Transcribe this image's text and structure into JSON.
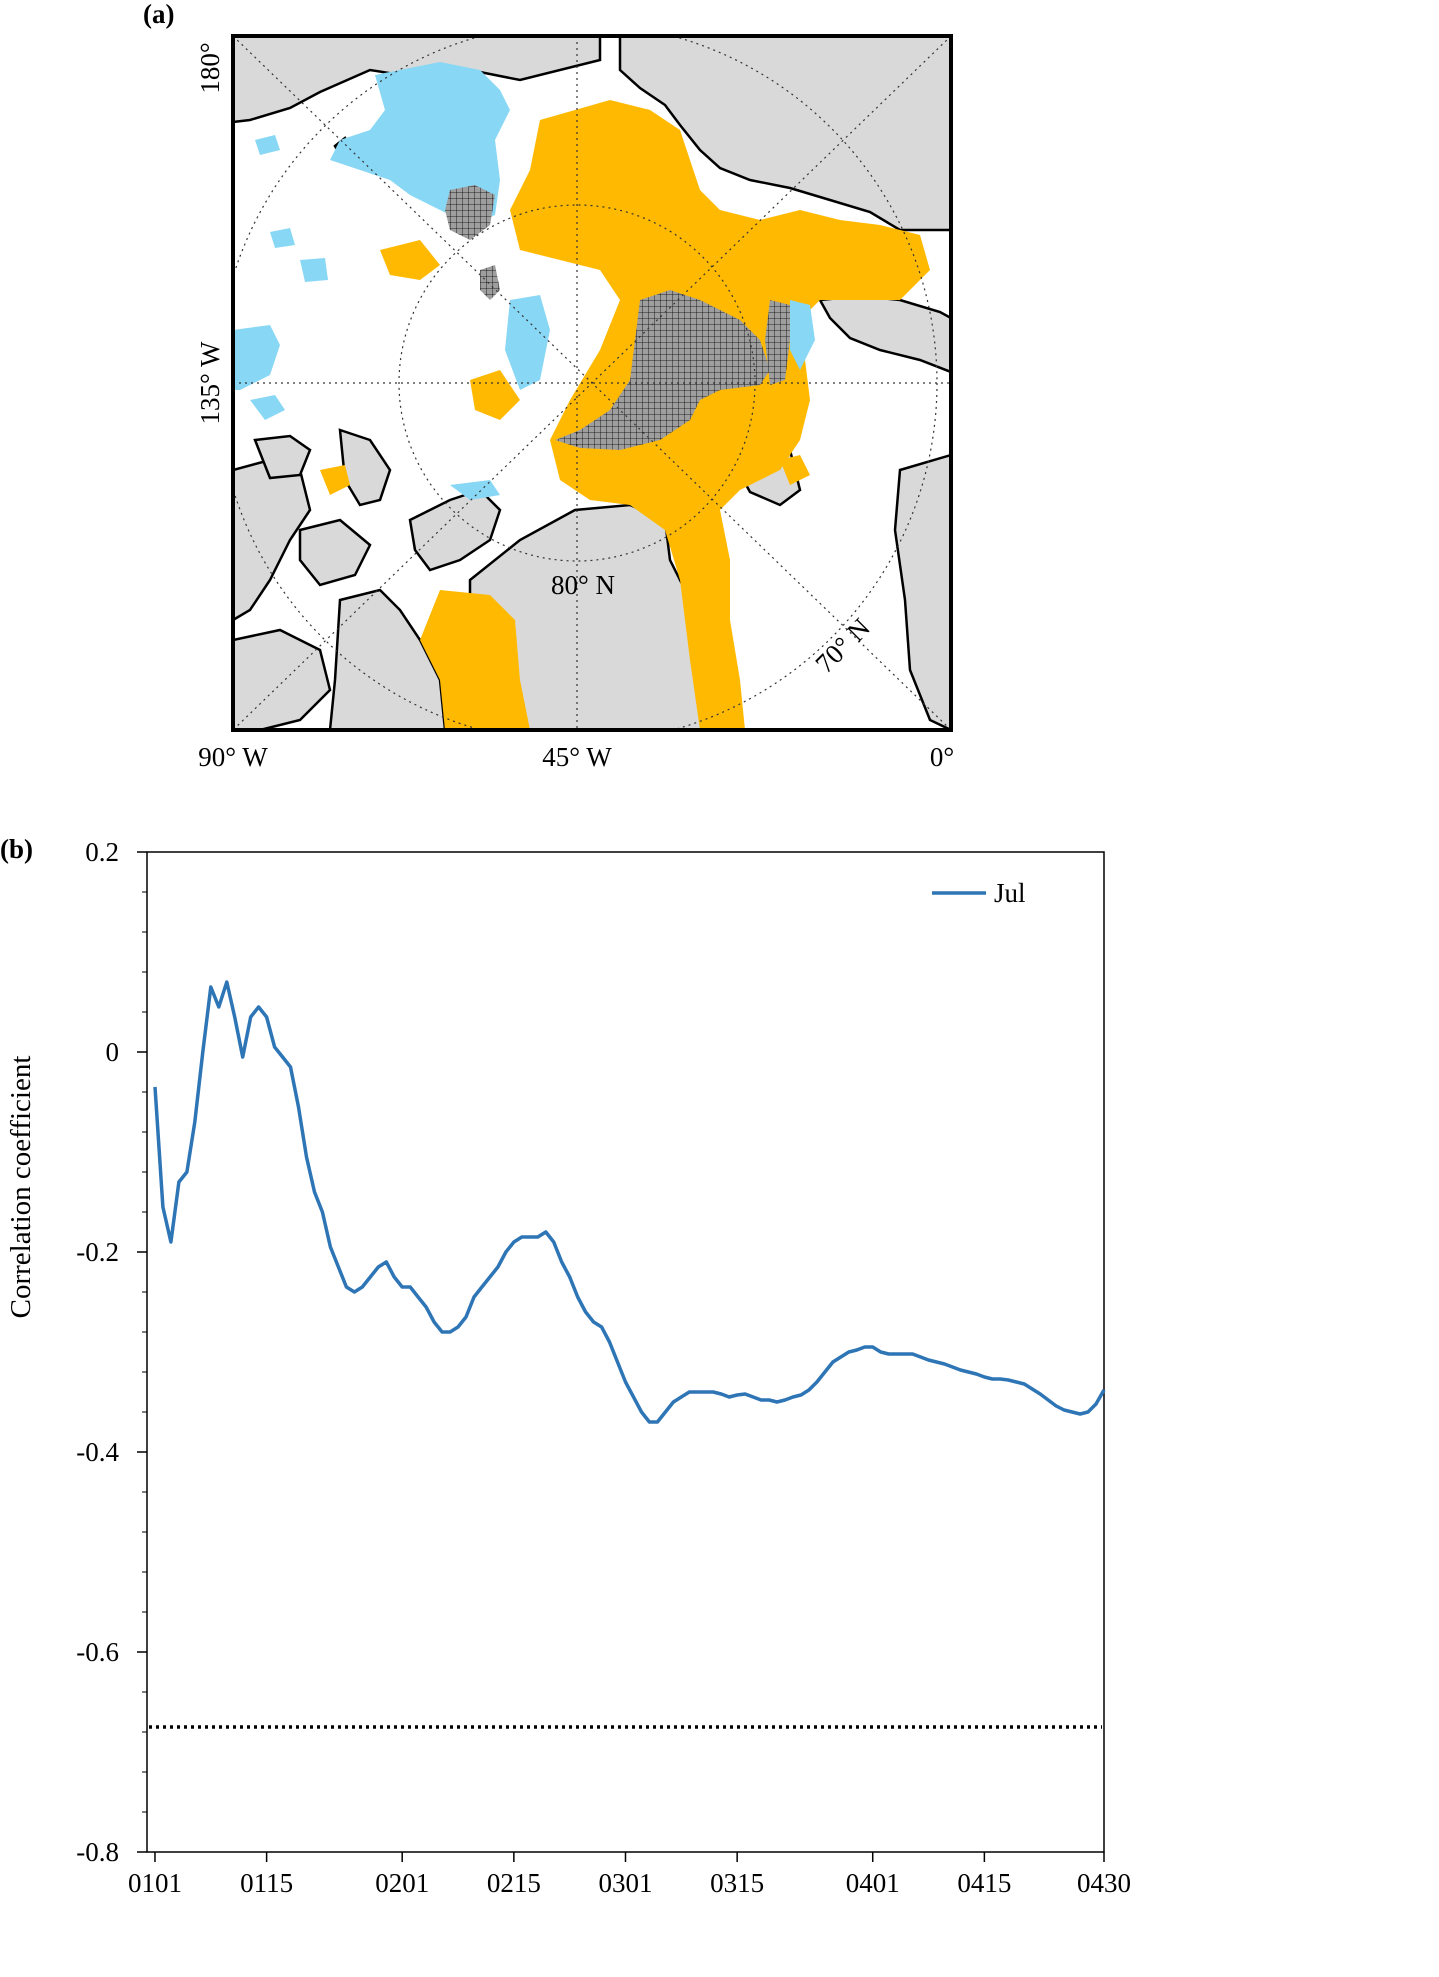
{
  "panel_a": {
    "label": "(a)",
    "lon_labels": {
      "top_left": "180°",
      "left": "135° W",
      "bottom_left": "90° W",
      "bottom_mid": "45° W",
      "bottom_right": "0°"
    },
    "lat_labels": {
      "inner": "80° N",
      "outer": "70° N"
    },
    "colors": {
      "land": "#d9d9d9",
      "positive": "#ffb900",
      "negative": "#87d7f5",
      "significant_hatch": "#000000"
    }
  },
  "panel_b": {
    "label": "(b)"
  },
  "chart_data": {
    "type": "line",
    "title": "",
    "xlabel": "",
    "ylabel": "Correlation coefficient",
    "ylim": [
      -0.8,
      0.2
    ],
    "yticks": [
      "0.2",
      "0",
      "-0.2",
      "-0.4",
      "-0.6",
      "-0.8"
    ],
    "xtick_labels": [
      "0101",
      "0115",
      "0201",
      "0215",
      "0301",
      "0315",
      "0401",
      "0415",
      "0430"
    ],
    "xtick_day_index": [
      1,
      15,
      32,
      46,
      60,
      74,
      91,
      105,
      120
    ],
    "xlim": [
      0,
      120
    ],
    "legend": {
      "label": "Jul",
      "position": "top-right"
    },
    "threshold": {
      "value": -0.675,
      "style": "dotted"
    },
    "series": [
      {
        "name": "Jul",
        "color": "#2e75b6",
        "x": [
          1,
          2,
          3,
          4,
          5,
          6,
          7,
          8,
          9,
          10,
          11,
          12,
          13,
          14,
          15,
          16,
          17,
          18,
          19,
          20,
          21,
          22,
          23,
          24,
          25,
          26,
          27,
          28,
          29,
          30,
          31,
          32,
          33,
          34,
          35,
          36,
          37,
          38,
          39,
          40,
          41,
          42,
          43,
          44,
          45,
          46,
          47,
          48,
          49,
          50,
          51,
          52,
          53,
          54,
          55,
          56,
          57,
          58,
          59,
          60,
          61,
          62,
          63,
          64,
          65,
          66,
          67,
          68,
          69,
          70,
          71,
          72,
          73,
          74,
          75,
          76,
          77,
          78,
          79,
          80,
          81,
          82,
          83,
          84,
          85,
          86,
          87,
          88,
          89,
          90,
          91,
          92,
          93,
          94,
          95,
          96,
          97,
          98,
          99,
          100,
          101,
          102,
          103,
          104,
          105,
          106,
          107,
          108,
          109,
          110,
          111,
          112,
          113,
          114,
          115,
          116,
          117,
          118,
          119,
          120
        ],
        "y": [
          -0.035,
          -0.155,
          -0.19,
          -0.13,
          -0.12,
          -0.07,
          0.0,
          0.065,
          0.045,
          0.07,
          0.035,
          -0.005,
          0.035,
          0.045,
          0.035,
          0.005,
          -0.005,
          -0.015,
          -0.055,
          -0.105,
          -0.14,
          -0.16,
          -0.195,
          -0.215,
          -0.235,
          -0.24,
          -0.235,
          -0.225,
          -0.215,
          -0.21,
          -0.225,
          -0.235,
          -0.235,
          -0.245,
          -0.255,
          -0.27,
          -0.28,
          -0.28,
          -0.275,
          -0.265,
          -0.245,
          -0.235,
          -0.225,
          -0.215,
          -0.2,
          -0.19,
          -0.185,
          -0.185,
          -0.185,
          -0.18,
          -0.19,
          -0.21,
          -0.225,
          -0.245,
          -0.26,
          -0.27,
          -0.275,
          -0.29,
          -0.31,
          -0.33,
          -0.345,
          -0.36,
          -0.37,
          -0.37,
          -0.36,
          -0.35,
          -0.345,
          -0.34,
          -0.34,
          -0.34,
          -0.34,
          -0.342,
          -0.345,
          -0.343,
          -0.342,
          -0.345,
          -0.348,
          -0.348,
          -0.35,
          -0.348,
          -0.345,
          -0.343,
          -0.338,
          -0.33,
          -0.32,
          -0.31,
          -0.305,
          -0.3,
          -0.298,
          -0.295,
          -0.295,
          -0.3,
          -0.302,
          -0.302,
          -0.302,
          -0.302,
          -0.305,
          -0.308,
          -0.31,
          -0.312,
          -0.315,
          -0.318,
          -0.32,
          -0.322,
          -0.325,
          -0.327,
          -0.327,
          -0.328,
          -0.33,
          -0.332,
          -0.337,
          -0.342,
          -0.348,
          -0.354,
          -0.358,
          -0.36,
          -0.362,
          -0.36,
          -0.352,
          -0.338
        ]
      }
    ]
  }
}
